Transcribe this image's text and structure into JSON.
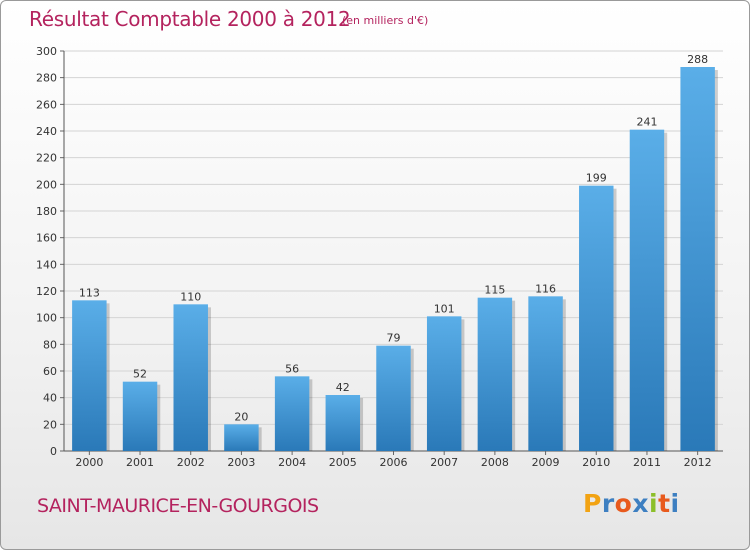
{
  "header": {
    "title": "Résultat Comptable 2000 à 2012",
    "subtitle": "(en milliers d'€)"
  },
  "footer": {
    "commune": "SAINT-MAURICE-EN-GOURGOIS",
    "logo_letters": [
      "P",
      "r",
      "o",
      "x",
      "i",
      "t",
      "i"
    ],
    "logo_colors": [
      "#f2a313",
      "#3d7fc1",
      "#e85a1d",
      "#3d7fc1",
      "#8cbf2a",
      "#e85a1d",
      "#3d7fc1"
    ]
  },
  "colors": {
    "bar_light": "#5aaee8",
    "bar_dark": "#2a79b8",
    "grid": "#d4d4d4",
    "accent": "#b4235e"
  },
  "chart_data": {
    "type": "bar",
    "title": "Résultat Comptable 2000 à 2012",
    "xlabel": "",
    "ylabel": "",
    "categories": [
      "2000",
      "2001",
      "2002",
      "2003",
      "2004",
      "2005",
      "2006",
      "2007",
      "2008",
      "2009",
      "2010",
      "2011",
      "2012"
    ],
    "values": [
      113,
      52,
      110,
      20,
      56,
      42,
      79,
      101,
      115,
      116,
      199,
      241,
      288
    ],
    "ylim": [
      0,
      300
    ],
    "yticks": [
      0,
      20,
      40,
      60,
      80,
      100,
      120,
      140,
      160,
      180,
      200,
      220,
      240,
      260,
      280,
      300
    ],
    "grid": true
  }
}
